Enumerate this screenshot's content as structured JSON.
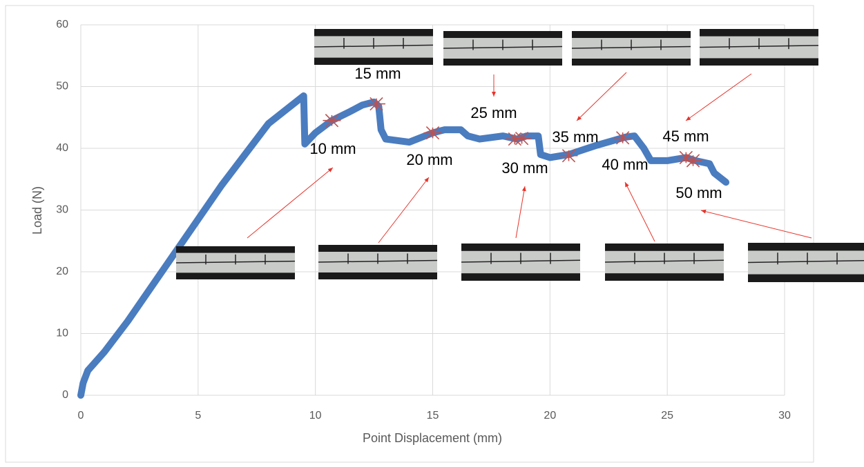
{
  "chart_data": {
    "type": "line",
    "xlabel": "Point Displacement (mm)",
    "ylabel": "Load (N)",
    "xlim": [
      0,
      30
    ],
    "xticks": [
      0,
      5,
      10,
      15,
      20,
      25,
      30
    ],
    "ylim": [
      0,
      60
    ],
    "yticks": [
      0,
      10,
      20,
      30,
      40,
      50,
      60
    ],
    "grid": true,
    "series": [
      {
        "color": "#4a7cc0",
        "kind": "line",
        "x": [
          0,
          0.1,
          0.3,
          1,
          2,
          3,
          4,
          5,
          6,
          7,
          8,
          9,
          9.5,
          9.55,
          10,
          10.7,
          11.5,
          12,
          12.5,
          12.7,
          12.8,
          13,
          14,
          15,
          15.5,
          16.2,
          16.5,
          17,
          18,
          18.6,
          19,
          19.5,
          19.6,
          20,
          20.8,
          22,
          23.2,
          23.6,
          24,
          24.3,
          25,
          25.8,
          26.2,
          26.8,
          27,
          27.5
        ],
        "values": [
          0,
          2,
          4,
          7,
          12,
          17.5,
          23,
          28.5,
          34,
          39,
          44,
          47,
          48.5,
          40.7,
          42.5,
          44.5,
          46,
          47,
          47.5,
          46.8,
          43,
          41.5,
          41,
          42.5,
          43,
          43,
          42,
          41.5,
          42,
          41.5,
          42,
          42,
          39,
          38.5,
          39,
          40.5,
          41.8,
          42,
          40,
          38,
          38,
          38.5,
          38,
          37.5,
          36,
          34.5
        ]
      },
      {
        "color": "#c0504d",
        "kind": "marker",
        "x": [
          10.7,
          12.6,
          15,
          18.5,
          18.8,
          20.8,
          23.1,
          25.8,
          26.1
        ],
        "values": [
          44.5,
          47.2,
          42.5,
          41.5,
          41.6,
          38.8,
          41.7,
          38.5,
          38
        ]
      }
    ],
    "annotations": [
      "10 mm",
      "15 mm",
      "20 mm",
      "25 mm",
      "30 mm",
      "35 mm",
      "40 mm",
      "45 mm",
      "50 mm"
    ]
  }
}
